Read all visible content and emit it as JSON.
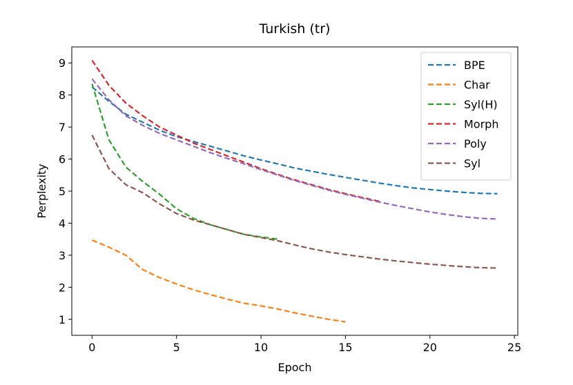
{
  "chart_data": {
    "type": "line",
    "title": "Turkish (tr)",
    "x_label": "Epoch",
    "y_label": "Perplexity",
    "x": [
      0,
      1,
      2,
      3,
      4,
      5,
      6,
      7,
      8,
      9,
      10,
      11,
      12,
      13,
      14,
      15,
      16,
      17,
      18,
      19,
      20,
      21,
      22,
      23,
      24
    ],
    "xlim": [
      -1.2,
      25.2
    ],
    "xticks": [
      0,
      5,
      10,
      15,
      20,
      25
    ],
    "ylim": [
      0.5,
      9.5
    ],
    "yticks": [
      1,
      2,
      3,
      4,
      5,
      6,
      7,
      8,
      9
    ],
    "legend": "upper right",
    "line_style": "dashed",
    "series": [
      {
        "name": "BPE",
        "color": "#1f77b4",
        "values": [
          8.25,
          7.8,
          7.4,
          7.15,
          6.9,
          6.7,
          6.55,
          6.4,
          6.25,
          6.1,
          5.97,
          5.85,
          5.72,
          5.62,
          5.52,
          5.43,
          5.34,
          5.25,
          5.17,
          5.1,
          5.05,
          5.0,
          4.96,
          4.93,
          4.92
        ]
      },
      {
        "name": "Char",
        "color": "#ff7f0e",
        "values": [
          3.47,
          3.25,
          3.0,
          2.55,
          2.3,
          2.1,
          1.92,
          1.77,
          1.63,
          1.5,
          1.42,
          1.32,
          1.2,
          1.1,
          1.0,
          0.92,
          null,
          null,
          null,
          null,
          null,
          null,
          null,
          null,
          null
        ]
      },
      {
        "name": "Syl(H)",
        "color": "#2ca02c",
        "values": [
          8.35,
          6.6,
          5.75,
          5.3,
          4.9,
          4.45,
          4.15,
          3.95,
          3.8,
          3.65,
          3.57,
          3.5,
          null,
          null,
          null,
          null,
          null,
          null,
          null,
          null,
          null,
          null,
          null,
          null,
          null
        ]
      },
      {
        "name": "Morph",
        "color": "#d62728",
        "values": [
          9.08,
          8.3,
          7.75,
          7.35,
          7.0,
          6.75,
          6.5,
          6.3,
          6.1,
          5.9,
          5.7,
          5.52,
          5.35,
          5.2,
          5.05,
          4.92,
          4.8,
          4.68,
          null,
          null,
          null,
          null,
          null,
          null,
          null
        ]
      },
      {
        "name": "Poly",
        "color": "#9467bd",
        "values": [
          8.5,
          7.85,
          7.35,
          7.05,
          6.8,
          6.6,
          6.4,
          6.2,
          6.02,
          5.85,
          5.67,
          5.5,
          5.33,
          5.18,
          5.03,
          4.9,
          4.78,
          4.66,
          4.55,
          4.45,
          4.35,
          4.27,
          4.2,
          4.15,
          4.13
        ]
      },
      {
        "name": "Syl",
        "color": "#8c564b",
        "values": [
          6.75,
          5.7,
          5.2,
          4.95,
          4.6,
          4.3,
          4.1,
          3.95,
          3.8,
          3.65,
          3.55,
          3.45,
          3.32,
          3.2,
          3.1,
          3.02,
          2.95,
          2.88,
          2.82,
          2.77,
          2.72,
          2.68,
          2.64,
          2.61,
          2.6
        ]
      }
    ]
  }
}
